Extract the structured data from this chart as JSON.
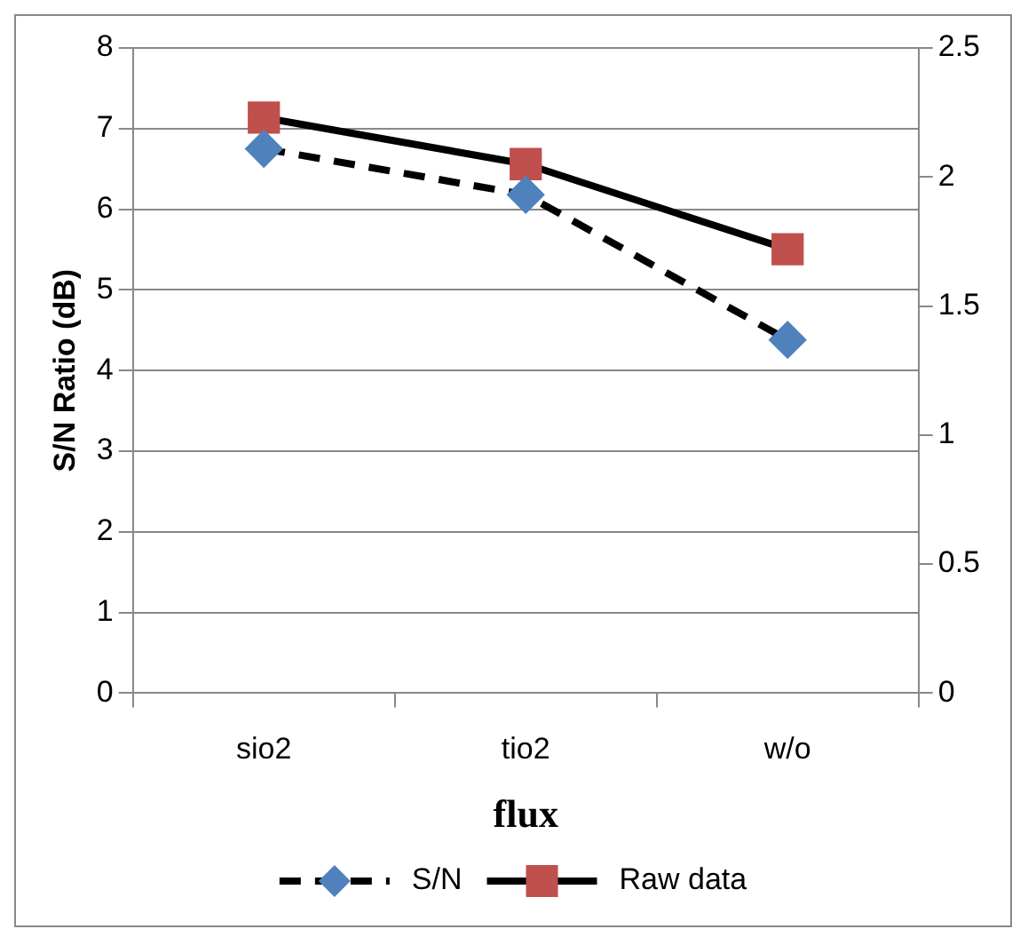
{
  "chart_data": {
    "type": "line",
    "xlabel": "flux",
    "ylabel": "S/N Ratio (dB)",
    "categories": [
      "sio2",
      "tio2",
      "w/o"
    ],
    "series": [
      {
        "name": "S/N",
        "color": "#4f81bd",
        "values": [
          6.75,
          6.18,
          4.38
        ],
        "marker": "diamond",
        "line_style": "dashed"
      },
      {
        "name": "Raw data",
        "color": "#c0504d",
        "values": [
          2.23,
          2.05,
          1.72
        ],
        "marker": "square",
        "line_style": "solid",
        "axis": "y2"
      }
    ],
    "ylim": [
      0,
      8
    ],
    "yticks": [
      0,
      1,
      2,
      3,
      4,
      5,
      6,
      7,
      8
    ],
    "y2lim": [
      0,
      2.5
    ],
    "y2ticks": [
      0,
      0.5,
      1,
      1.5,
      2,
      2.5
    ],
    "grid": "y",
    "legend": "bottom"
  }
}
